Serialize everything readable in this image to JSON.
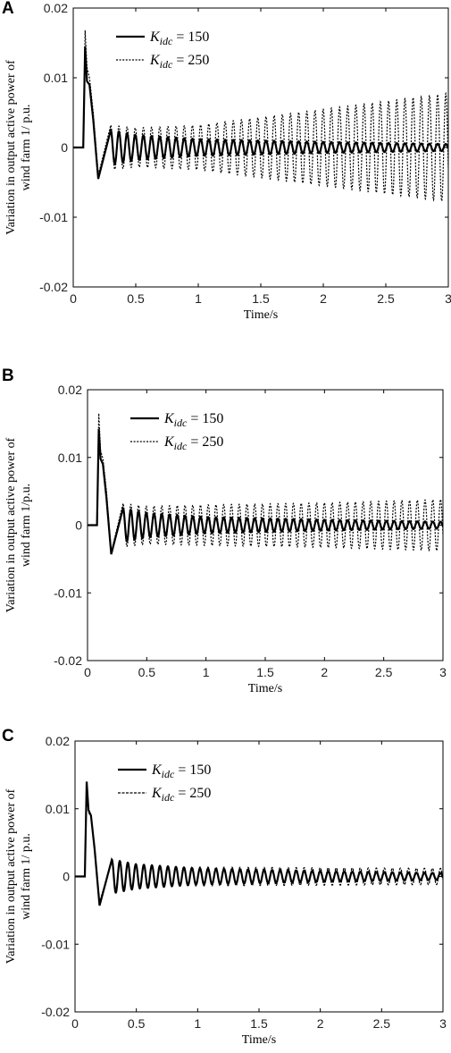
{
  "chart_data": [
    {
      "panel": "A",
      "type": "line",
      "xlabel": "Time/s",
      "ylabel": [
        "Variation in output active power of",
        "wind farm 1/ p.u."
      ],
      "xlim": [
        0,
        3
      ],
      "ylim": [
        -0.02,
        0.02
      ],
      "xticks": [
        "0",
        "0.5",
        "1",
        "1.5",
        "2",
        "2.5",
        "3"
      ],
      "yticks": [
        "0.02",
        "0.01",
        "0",
        "-0.01",
        "-0.02"
      ],
      "legend_position": "top-left",
      "grid": false,
      "series": [
        {
          "legend": [
            "K",
            "idc",
            " = 150"
          ],
          "style": "solid",
          "x": [
            0,
            0.08,
            0.095,
            0.11,
            0.13,
            0.16,
            0.2,
            0.3,
            0.5,
            1.0,
            2.0,
            3.0
          ],
          "y": [
            0,
            0,
            0.0145,
            0.0095,
            0.009,
            0.004,
            -0.0045,
            0.0025,
            0.0018,
            0.0012,
            0.0008,
            0.0005
          ],
          "freq_hz": 15.3
        },
        {
          "legend": [
            "K",
            "idc",
            " = 250"
          ],
          "style": "dotted",
          "x": [
            0,
            0.08,
            0.095,
            0.11,
            0.13,
            0.16,
            0.2,
            0.3,
            0.5,
            1.0,
            2.0,
            3.0
          ],
          "y": [
            0,
            0,
            0.0168,
            0.0115,
            0.01,
            0.005,
            -0.004,
            0.0032,
            0.0028,
            0.0032,
            0.0055,
            0.0078
          ],
          "freq_hz": 15.3
        }
      ]
    },
    {
      "panel": "B",
      "type": "line",
      "xlabel": "Time/s",
      "ylabel": [
        "Variation in output active power of",
        "wind farm 1/p.u."
      ],
      "xlim": [
        0,
        3
      ],
      "ylim": [
        -0.02,
        0.02
      ],
      "xticks": [
        "0",
        "0.5",
        "1",
        "1.5",
        "2",
        "2.5",
        "3"
      ],
      "yticks": [
        "0.02",
        "0.01",
        "0",
        "-0.01",
        "-0.02"
      ],
      "legend_position": "top-left",
      "grid": false,
      "series": [
        {
          "legend": [
            "K",
            "idc",
            " = 150"
          ],
          "style": "solid",
          "x": [
            0,
            0.08,
            0.095,
            0.11,
            0.13,
            0.16,
            0.2,
            0.3,
            0.5,
            1.0,
            2.0,
            3.0
          ],
          "y": [
            0,
            0,
            0.0142,
            0.0098,
            0.009,
            0.004,
            -0.0043,
            0.0025,
            0.0018,
            0.0012,
            0.0008,
            0.0005
          ],
          "freq_hz": 15.3
        },
        {
          "legend": [
            "K",
            "idc",
            " = 250"
          ],
          "style": "dotted",
          "x": [
            0,
            0.08,
            0.095,
            0.11,
            0.13,
            0.16,
            0.2,
            0.3,
            0.5,
            1.0,
            2.0,
            3.0
          ],
          "y": [
            0,
            0,
            0.0165,
            0.011,
            0.0098,
            0.005,
            -0.004,
            0.0032,
            0.0028,
            0.003,
            0.0033,
            0.0038
          ],
          "freq_hz": 15.3
        }
      ]
    },
    {
      "panel": "C",
      "type": "line",
      "xlabel": "Time/s",
      "ylabel": [
        "Variation in output active power of",
        "wind farm 1/ p.u."
      ],
      "xlim": [
        0,
        3
      ],
      "ylim": [
        -0.02,
        0.02
      ],
      "xticks": [
        "0",
        "0.5",
        "1",
        "1.5",
        "2",
        "2.5",
        "3"
      ],
      "yticks": [
        "0.02",
        "0.01",
        "0",
        "-0.01",
        "-0.02"
      ],
      "legend_position": "top-left",
      "grid": false,
      "series": [
        {
          "legend": [
            "K",
            "idc",
            " = 150"
          ],
          "style": "solid",
          "x": [
            0,
            0.08,
            0.095,
            0.11,
            0.13,
            0.16,
            0.2,
            0.3,
            0.5,
            1.0,
            2.0,
            3.0
          ],
          "y": [
            0,
            0,
            0.014,
            0.0098,
            0.009,
            0.004,
            -0.0043,
            0.0025,
            0.0018,
            0.0012,
            0.0008,
            0.0005
          ],
          "freq_hz": 15.3
        },
        {
          "legend": [
            "K",
            "idc",
            " = 250"
          ],
          "style": "dashed",
          "x": [
            0,
            0.08,
            0.095,
            0.11,
            0.13,
            0.16,
            0.2,
            0.3,
            0.5,
            1.0,
            2.0,
            3.0
          ],
          "y": [
            0,
            0,
            0.0135,
            0.0095,
            0.0088,
            0.0042,
            -0.0038,
            0.0022,
            0.0016,
            0.0014,
            0.0013,
            0.0012
          ],
          "freq_hz": 15.3
        }
      ]
    }
  ]
}
